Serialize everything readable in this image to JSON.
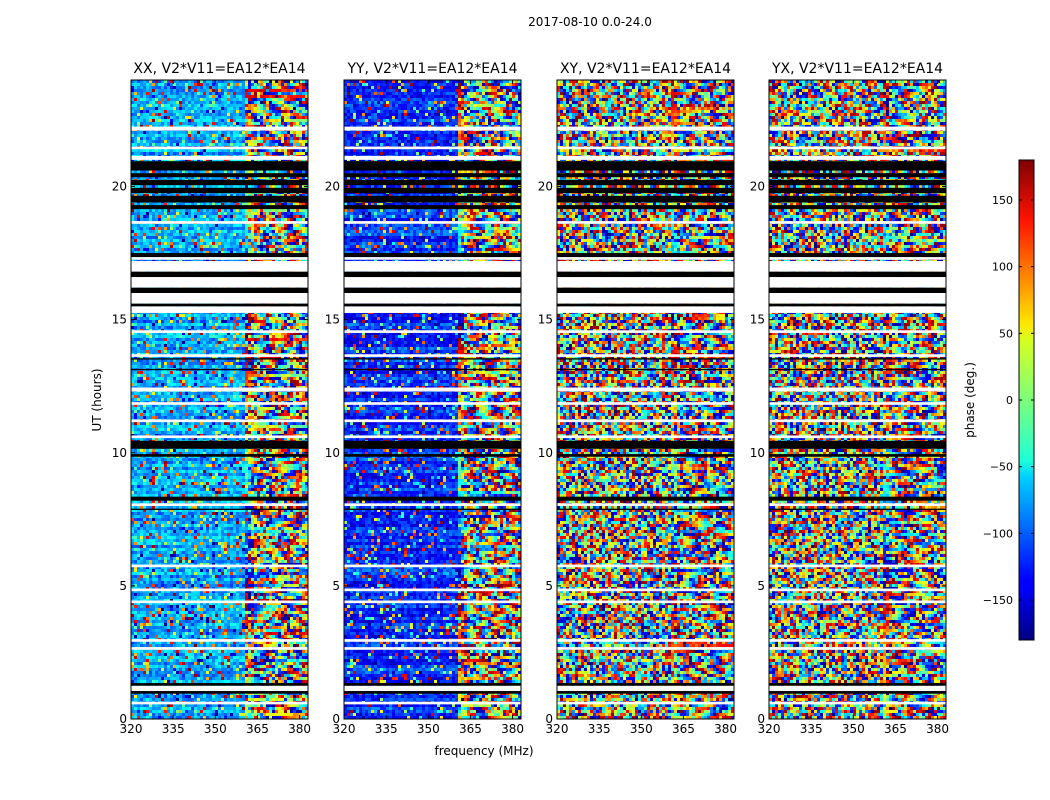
{
  "figure": {
    "suptitle": "2017-08-10 0.0-24.0"
  },
  "chart_data": {
    "type": "heatmap",
    "title": "2017-08-10 0.0-24.0",
    "xlabel": "frequency (MHz)",
    "ylabel": "UT (hours)",
    "xlim": [
      320,
      383
    ],
    "ylim": [
      0,
      24
    ],
    "xticks": [
      320,
      335,
      350,
      365,
      380
    ],
    "yticks": [
      0,
      5,
      10,
      15,
      20
    ],
    "panels": [
      {
        "title": "XX, V2*V11=EA12*EA14",
        "pol": "XX",
        "base_phase": -75,
        "coherence": 0.75
      },
      {
        "title": "YY, V2*V11=EA12*EA14",
        "pol": "YY",
        "base_phase": -120,
        "coherence": 0.8
      },
      {
        "title": "XY, V2*V11=EA12*EA14",
        "pol": "XY",
        "base_phase": 0,
        "coherence": 0.0
      },
      {
        "title": "YX, V2*V11=EA12*EA14",
        "pol": "YX",
        "base_phase": 0,
        "coherence": 0.0
      }
    ],
    "coherent_band_end_mhz": 361,
    "colorbar": {
      "label": "phase (deg.)",
      "range": [
        -180,
        180
      ],
      "ticks": [
        150,
        100,
        50,
        0,
        -50,
        -100,
        -150
      ],
      "tick_labels": [
        "150",
        "100",
        "50",
        "0",
        "−50",
        "−100",
        "−150"
      ],
      "colormap": "jet"
    },
    "flagged_ut_ranges": [
      [
        20.6,
        20.95
      ],
      [
        20.35,
        20.5
      ],
      [
        20.05,
        20.25
      ],
      [
        19.75,
        19.95
      ],
      [
        19.4,
        19.65
      ],
      [
        19.15,
        19.3
      ],
      [
        17.35,
        17.5
      ],
      [
        16.6,
        16.8
      ],
      [
        16.0,
        16.2
      ],
      [
        15.5,
        15.6
      ],
      [
        13.5,
        13.55
      ],
      [
        13.1,
        13.15
      ],
      [
        10.15,
        10.45
      ],
      [
        9.85,
        9.95
      ],
      [
        8.2,
        8.35
      ],
      [
        7.85,
        7.9
      ],
      [
        1.25,
        1.35
      ],
      [
        0.95,
        1.05
      ]
    ],
    "blank_ut_ranges": [
      [
        22.1,
        22.25
      ],
      [
        21.4,
        21.5
      ],
      [
        21.0,
        21.15
      ],
      [
        18.6,
        18.7
      ],
      [
        17.25,
        17.35
      ],
      [
        16.8,
        17.2
      ],
      [
        16.2,
        16.6
      ],
      [
        15.6,
        16.0
      ],
      [
        15.25,
        15.5
      ],
      [
        14.5,
        14.6
      ],
      [
        13.6,
        13.7
      ],
      [
        12.3,
        12.45
      ],
      [
        11.8,
        11.9
      ],
      [
        11.15,
        11.25
      ],
      [
        10.55,
        10.65
      ],
      [
        8.0,
        8.1
      ],
      [
        5.7,
        5.8
      ],
      [
        4.8,
        4.9
      ],
      [
        4.35,
        4.45
      ],
      [
        2.9,
        3.0
      ],
      [
        2.6,
        2.7
      ],
      [
        1.05,
        1.25
      ],
      [
        0.55,
        0.65
      ]
    ]
  }
}
